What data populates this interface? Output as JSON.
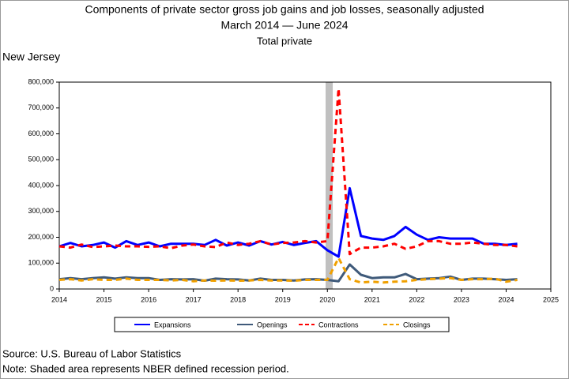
{
  "chart_data": {
    "type": "line",
    "title": "Components of private sector gross job gains and job losses, seasonally adjusted",
    "subtitle": "March 2014 — June 2024",
    "subtitle2": "Total private",
    "region": "New Jersey",
    "source": "Source: U.S. Bureau of Labor Statistics",
    "note": "Note: Shaded area represents NBER defined recession period.",
    "recession": [
      2019.96,
      2020.12
    ],
    "x": [
      2014,
      2014.25,
      2014.5,
      2014.75,
      2015,
      2015.25,
      2015.5,
      2015.75,
      2016,
      2016.25,
      2016.5,
      2016.75,
      2017,
      2017.25,
      2017.5,
      2017.75,
      2018,
      2018.25,
      2018.5,
      2018.75,
      2019,
      2019.25,
      2019.5,
      2019.75,
      2020,
      2020.25,
      2020.5,
      2020.75,
      2021,
      2021.25,
      2021.5,
      2021.75,
      2022,
      2022.25,
      2022.5,
      2022.75,
      2023,
      2023.25,
      2023.5,
      2023.75,
      2024,
      2024.25
    ],
    "series": [
      {
        "name": "Expansions",
        "color": "#0000ff",
        "dash": false,
        "values": [
          165000,
          178000,
          165000,
          170000,
          180000,
          160000,
          185000,
          170000,
          180000,
          165000,
          175000,
          175000,
          175000,
          170000,
          190000,
          168000,
          180000,
          168000,
          185000,
          172000,
          182000,
          170000,
          178000,
          185000,
          150000,
          125000,
          390000,
          205000,
          195000,
          190000,
          205000,
          240000,
          210000,
          190000,
          200000,
          195000,
          195000,
          195000,
          175000,
          175000,
          170000,
          175000
        ]
      },
      {
        "name": "Openings",
        "color": "#3f5a7a",
        "dash": false,
        "values": [
          38000,
          42000,
          38000,
          42000,
          45000,
          40000,
          45000,
          42000,
          42000,
          35000,
          38000,
          37000,
          38000,
          32000,
          40000,
          38000,
          37000,
          33000,
          40000,
          35000,
          35000,
          33000,
          37000,
          38000,
          35000,
          30000,
          95000,
          55000,
          42000,
          45000,
          45000,
          58000,
          38000,
          40000,
          42000,
          48000,
          35000,
          40000,
          40000,
          38000,
          35000,
          38000
        ]
      },
      {
        "name": "Contractions",
        "color": "#ff0000",
        "dash": true,
        "values": [
          165000,
          160000,
          172000,
          162000,
          165000,
          168000,
          165000,
          165000,
          163000,
          165000,
          158000,
          168000,
          172000,
          165000,
          162000,
          180000,
          170000,
          175000,
          185000,
          172000,
          178000,
          180000,
          185000,
          180000,
          185000,
          775000,
          135000,
          160000,
          160000,
          165000,
          175000,
          155000,
          165000,
          185000,
          185000,
          175000,
          175000,
          180000,
          175000,
          170000,
          170000,
          165000
        ]
      },
      {
        "name": "Closings",
        "color": "#f0a000",
        "dash": true,
        "values": [
          35000,
          38000,
          33000,
          38000,
          35000,
          35000,
          40000,
          35000,
          35000,
          35000,
          33000,
          35000,
          30000,
          33000,
          32000,
          33000,
          32000,
          33000,
          35000,
          33000,
          33000,
          32000,
          35000,
          35000,
          35000,
          120000,
          38000,
          25000,
          28000,
          25000,
          28000,
          30000,
          35000,
          38000,
          40000,
          42000,
          35000,
          38000,
          38000,
          40000,
          28000,
          35000
        ]
      }
    ],
    "xlim": [
      2014,
      2025
    ],
    "xticks": [
      2014,
      2015,
      2016,
      2017,
      2018,
      2019,
      2020,
      2021,
      2022,
      2023,
      2024,
      2025
    ],
    "ylim": [
      0,
      800000
    ],
    "yticks": [
      0,
      {
        "value": 100000,
        "label": "100,000"
      },
      {
        "value": 200000,
        "label": "200,000"
      },
      {
        "value": 300000,
        "label": "300,000"
      },
      {
        "value": 400000,
        "label": "400,000"
      },
      {
        "value": 500000,
        "label": "500,000"
      },
      {
        "value": 600000,
        "label": "600,000"
      },
      {
        "value": 700000,
        "label": "700,000"
      },
      {
        "value": 800000,
        "label": "800,000"
      }
    ],
    "legend": "bottom"
  }
}
